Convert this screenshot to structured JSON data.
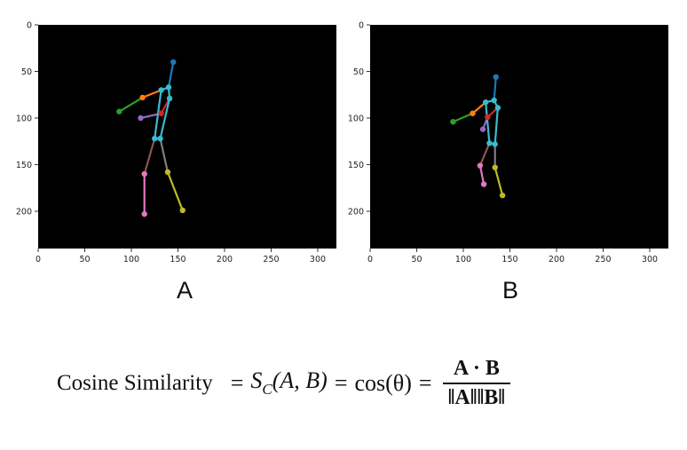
{
  "panels": [
    {
      "id": "A",
      "caption": "A",
      "xlim": [
        0,
        320
      ],
      "ylim": [
        240,
        0
      ],
      "xticks": [
        0,
        50,
        100,
        150,
        200,
        250,
        300
      ],
      "yticks": [
        0,
        50,
        100,
        150,
        200
      ],
      "keypoints": {
        "head": [
          145,
          40
        ],
        "neck": [
          140,
          67
        ],
        "l_shoulder": [
          132,
          70
        ],
        "r_shoulder": [
          141,
          79
        ],
        "l_elbow": [
          112,
          78
        ],
        "l_wrist": [
          87,
          93
        ],
        "r_elbow": [
          132,
          95
        ],
        "r_wrist": [
          110,
          100
        ],
        "l_hip": [
          125,
          122
        ],
        "r_hip": [
          131,
          122
        ],
        "l_knee": [
          114,
          160
        ],
        "l_ankle": [
          114,
          203
        ],
        "r_knee": [
          139,
          158
        ],
        "r_ankle": [
          155,
          199
        ]
      }
    },
    {
      "id": "B",
      "caption": "B",
      "xlim": [
        0,
        320
      ],
      "ylim": [
        240,
        0
      ],
      "xticks": [
        0,
        50,
        100,
        150,
        200,
        250,
        300
      ],
      "yticks": [
        0,
        50,
        100,
        150,
        200
      ],
      "keypoints": {
        "head": [
          135,
          56
        ],
        "neck": [
          133,
          81
        ],
        "l_shoulder": [
          124,
          83
        ],
        "r_shoulder": [
          137,
          89
        ],
        "l_elbow": [
          110,
          95
        ],
        "l_wrist": [
          89,
          104
        ],
        "r_elbow": [
          126,
          99
        ],
        "r_wrist": [
          121,
          112
        ],
        "l_hip": [
          128,
          127
        ],
        "r_hip": [
          134,
          128
        ],
        "l_knee": [
          118,
          151
        ],
        "l_ankle": [
          122,
          171
        ],
        "r_knee": [
          134,
          153
        ],
        "r_ankle": [
          142,
          183
        ]
      }
    }
  ],
  "skeleton_colors": {
    "torso": "#38bcd0",
    "head_link": "#1f77b4",
    "left_arm_upper": "#ff7f0e",
    "left_arm_lower": "#2ca02c",
    "right_arm_upper": "#d62728",
    "right_arm_lower": "#9467bd",
    "left_leg_upper": "#8c564b",
    "left_leg_lower": "#e377c2",
    "right_leg_upper": "#7f7f7f",
    "right_leg_lower": "#bcbd22"
  },
  "formula": {
    "label": "Cosine Similarity",
    "eq1": "=",
    "sc_S": "S",
    "sc_sub": "C",
    "sc_args": "(A, B)",
    "eq2": "=",
    "cos": "cos(θ)",
    "eq3": "=",
    "numerator": "A · B",
    "denominator": "‖A‖‖B‖"
  }
}
